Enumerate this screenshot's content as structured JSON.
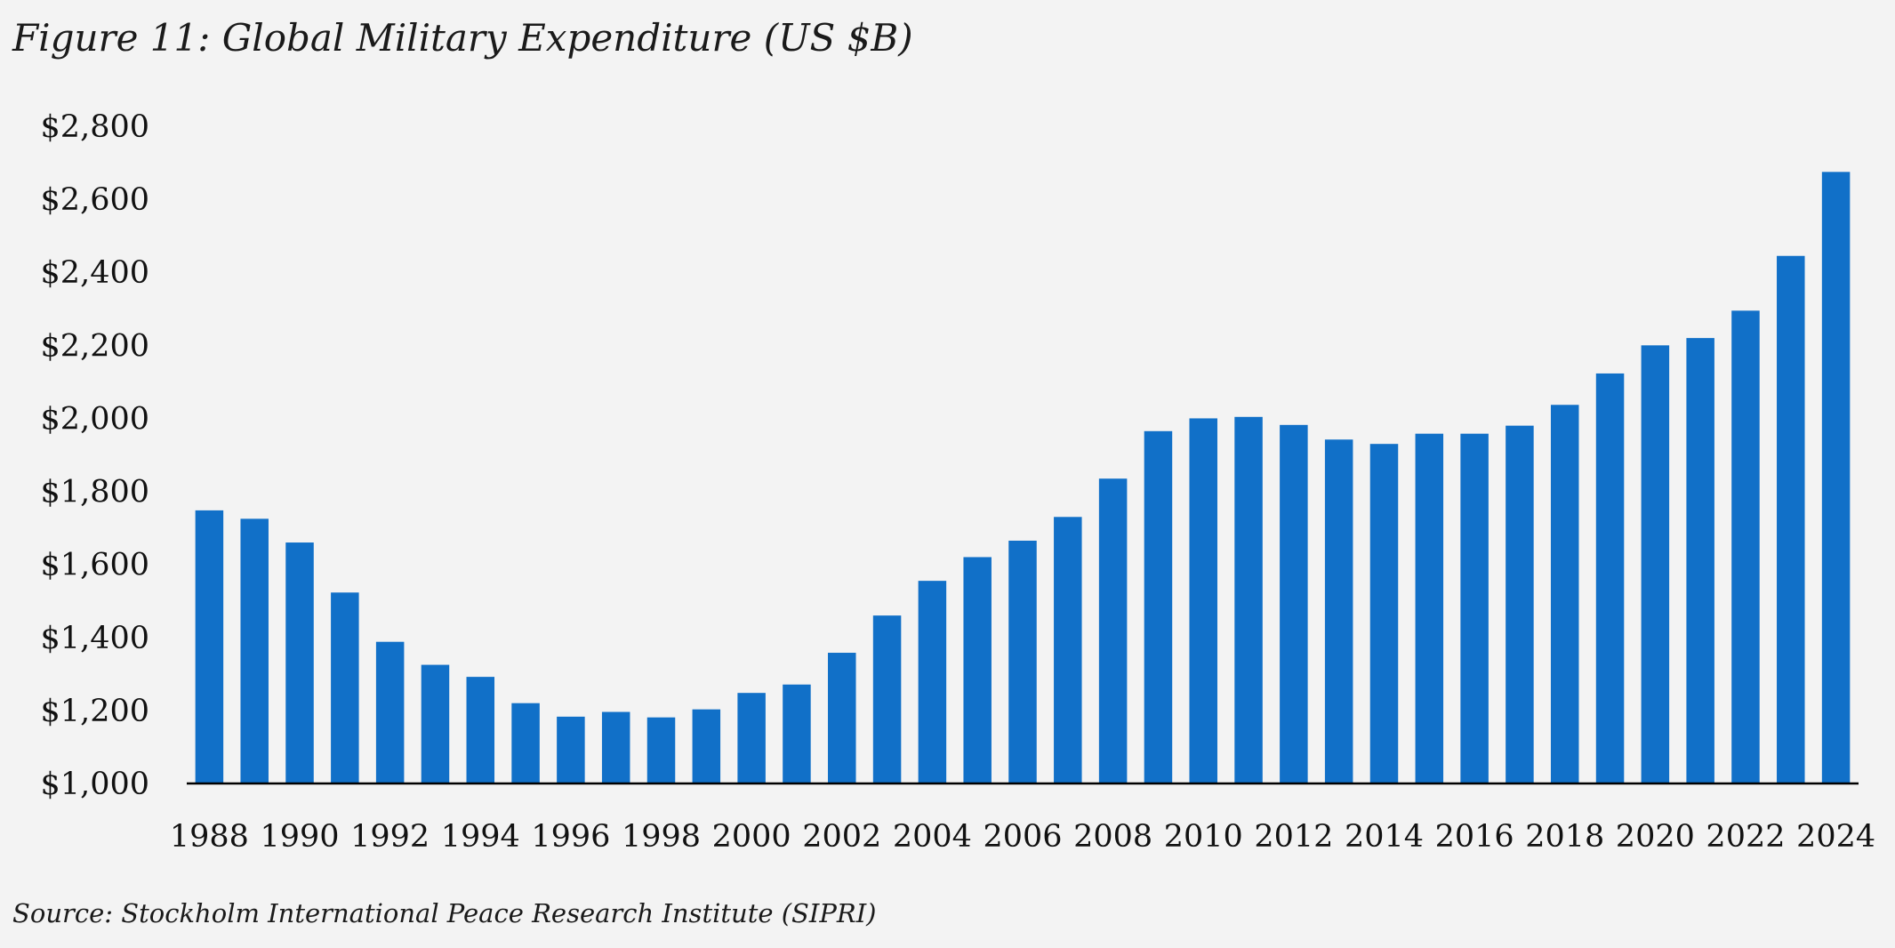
{
  "title": "Figure 11: Global Military Expenditure (US $B)",
  "source": "Source: Stockholm International Peace Research Institute (SIPRI)",
  "chart_data": {
    "type": "bar",
    "bar_color": "#1170c8",
    "axis_color": "#000000",
    "ylim": [
      1000,
      2800
    ],
    "yticks": [
      1000,
      1200,
      1400,
      1600,
      1800,
      2000,
      2200,
      2400,
      2600,
      2800
    ],
    "ytick_labels": [
      "$1,000",
      "$1,200",
      "$1,400",
      "$1,600",
      "$1,800",
      "$2,000",
      "$2,200",
      "$2,400",
      "$2,600",
      "$2,800"
    ],
    "xtick_labels": [
      "1988",
      "1990",
      "1992",
      "1994",
      "1996",
      "1998",
      "2000",
      "2002",
      "2004",
      "2006",
      "2008",
      "2010",
      "2012",
      "2014",
      "2016",
      "2018",
      "2020",
      "2022",
      "2024"
    ],
    "categories": [
      "1988",
      "1989",
      "1990",
      "1991",
      "1992",
      "1993",
      "1994",
      "1995",
      "1996",
      "1997",
      "1998",
      "1999",
      "2000",
      "2001",
      "2002",
      "2003",
      "2004",
      "2005",
      "2006",
      "2007",
      "2008",
      "2009",
      "2010",
      "2011",
      "2012",
      "2013",
      "2014",
      "2015",
      "2016",
      "2017",
      "2018",
      "2019",
      "2020",
      "2021",
      "2022",
      "2023",
      "2024"
    ],
    "values": [
      1748,
      1725,
      1660,
      1523,
      1388,
      1325,
      1292,
      1220,
      1183,
      1196,
      1181,
      1203,
      1248,
      1271,
      1358,
      1460,
      1555,
      1620,
      1665,
      1730,
      1835,
      1965,
      2000,
      2004,
      1982,
      1942,
      1930,
      1958,
      1958,
      1980,
      2037,
      2123,
      2200,
      2220,
      2295,
      2445,
      2675
    ],
    "grid": false,
    "legend": "none"
  }
}
